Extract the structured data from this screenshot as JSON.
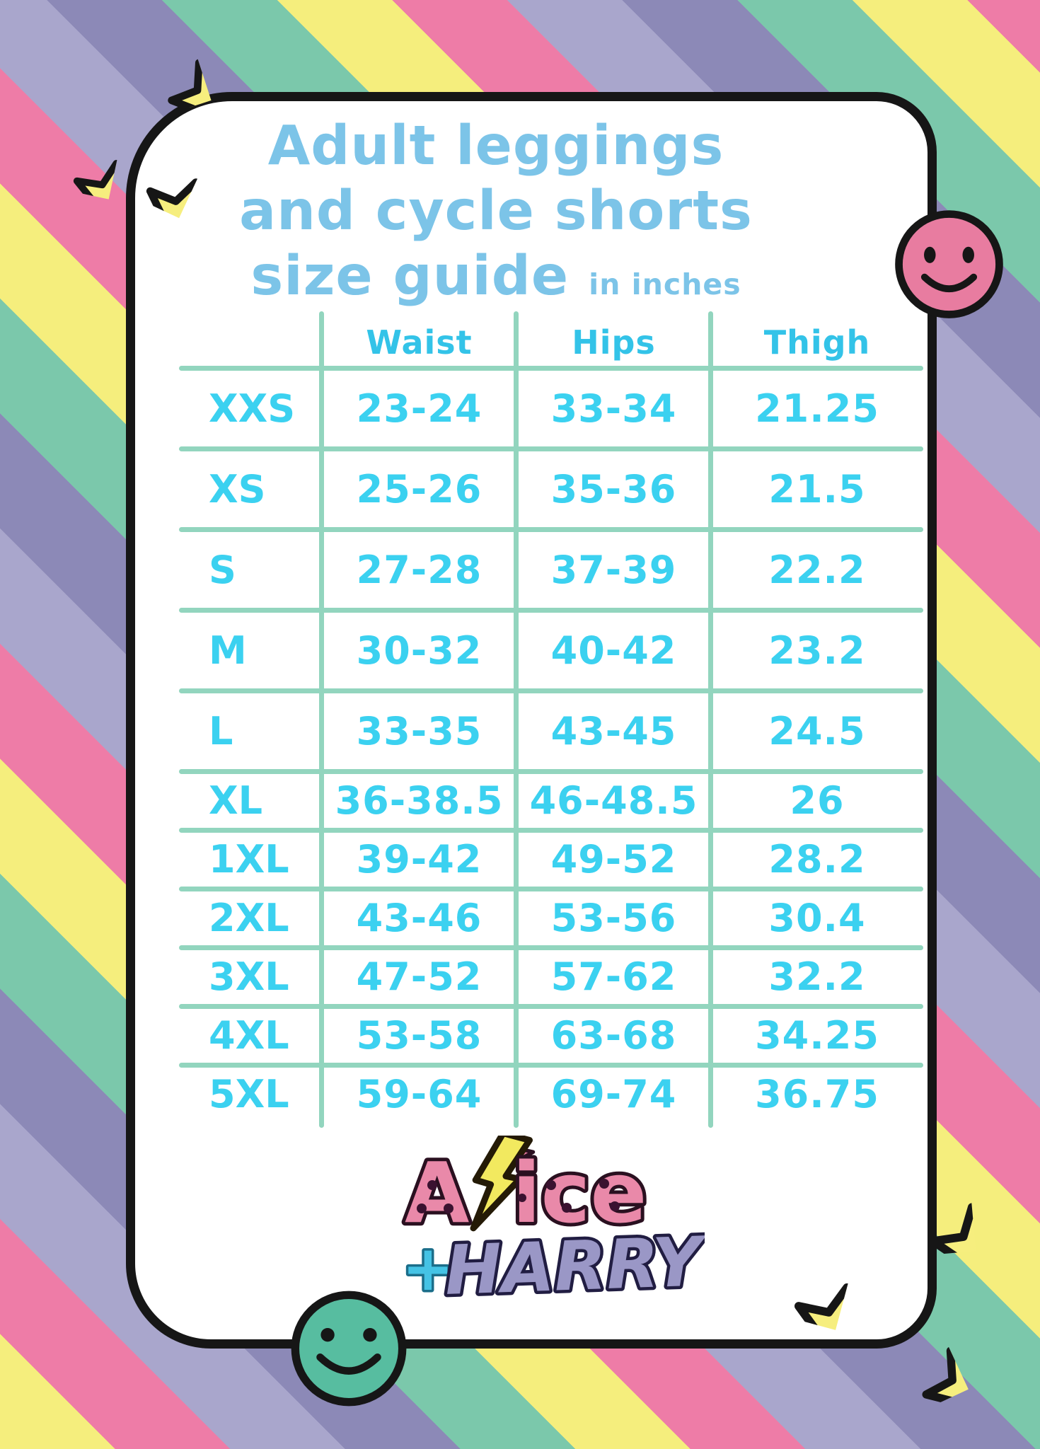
{
  "title": {
    "line1": "Adult leggings",
    "line2": "and cycle shorts",
    "line3": "size guide",
    "unit_note": "in inches"
  },
  "table": {
    "columns": [
      "Waist",
      "Hips",
      "Thigh"
    ],
    "rows": [
      {
        "size": "XXS",
        "waist": "23-24",
        "hips": "33-34",
        "thigh": "21.25"
      },
      {
        "size": "XS",
        "waist": "25-26",
        "hips": "35-36",
        "thigh": "21.5"
      },
      {
        "size": "S",
        "waist": "27-28",
        "hips": "37-39",
        "thigh": "22.2"
      },
      {
        "size": "M",
        "waist": "30-32",
        "hips": "40-42",
        "thigh": "23.2"
      },
      {
        "size": "L",
        "waist": "33-35",
        "hips": "43-45",
        "thigh": "24.5"
      },
      {
        "size": "XL",
        "waist": "36-38.5",
        "hips": "46-48.5",
        "thigh": "26"
      },
      {
        "size": "1XL",
        "waist": "39-42",
        "hips": "49-52",
        "thigh": "28.2"
      },
      {
        "size": "2XL",
        "waist": "43-46",
        "hips": "53-56",
        "thigh": "30.4"
      },
      {
        "size": "3XL",
        "waist": "47-52",
        "hips": "57-62",
        "thigh": "32.2"
      },
      {
        "size": "4XL",
        "waist": "53-58",
        "hips": "63-68",
        "thigh": "34.25"
      },
      {
        "size": "5XL",
        "waist": "59-64",
        "hips": "69-74",
        "thigh": "36.75"
      }
    ]
  },
  "brand": {
    "alice_a": "A",
    "alice_rest": "ice",
    "plus": "+",
    "harry": "HARRY"
  },
  "decor": {
    "icons": [
      "pink-smiley-face-icon",
      "green-smiley-face-icon",
      "yellow-star-icon",
      "lightning-bolt-icon",
      "pink-star-icon"
    ]
  },
  "colors": {
    "stripe_yellow": "#F5EE7D",
    "stripe_pink": "#EE7CA7",
    "stripe_light_purple": "#A9A6CC",
    "stripe_dark_purple": "#8C89B7",
    "stripe_green": "#7BC8AB",
    "card_bg": "#FFFFFF",
    "outline_black": "#161616",
    "title_blue": "#7CC4E8",
    "table_text_cyan": "#3BD1F0",
    "header_cyan": "#33C3E8",
    "table_line_teal": "#92D5BE",
    "smiley_pink": "#E87CA0",
    "smiley_green": "#57BDA0",
    "star_yellow": "#F6EE7E",
    "logo_pink": "#E989A9",
    "logo_purple": "#9A97C6",
    "logo_plus_cyan": "#45C3E5",
    "logo_bolt_yellow": "#F2E95F"
  }
}
